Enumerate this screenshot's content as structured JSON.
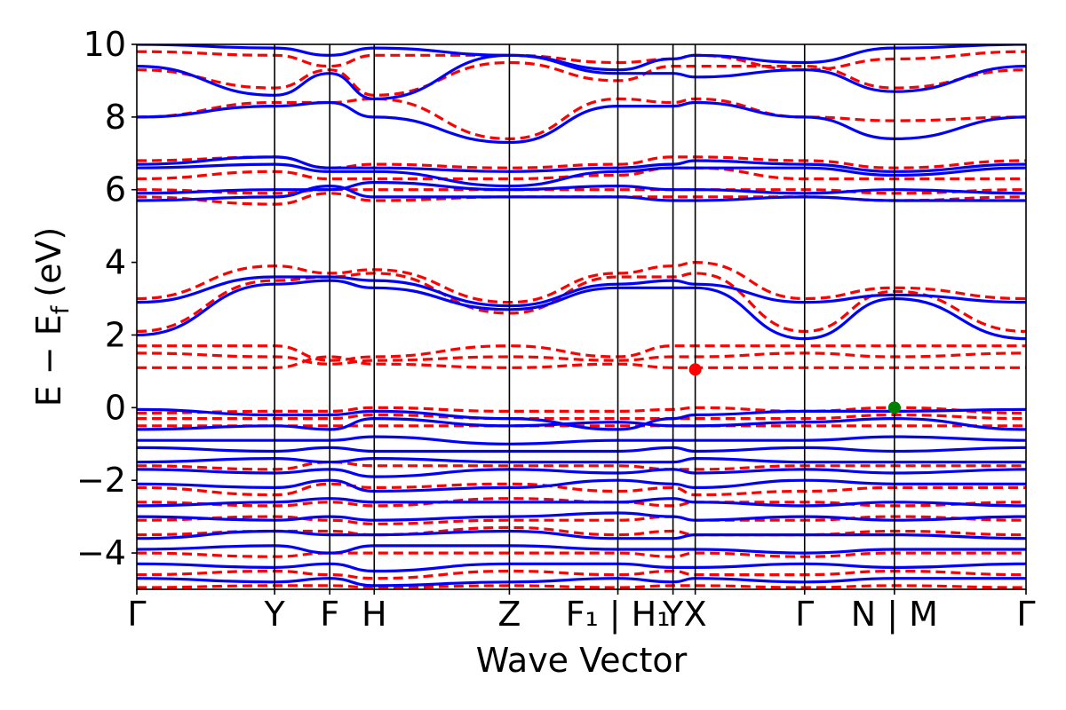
{
  "chart_data": {
    "type": "line",
    "xlabel": "Wave Vector",
    "ylabel_main": "E − E",
    "ylabel_sub": "f",
    "ylabel_unit": "(eV)",
    "ylim": [
      -5,
      10
    ],
    "yticks": [
      -4,
      -2,
      0,
      2,
      4,
      6,
      8,
      10
    ],
    "ytick_labels": [
      "−4",
      "−2",
      "0",
      "2",
      "4",
      "6",
      "8",
      "10"
    ],
    "xlim": [
      0,
      1
    ],
    "kpoints": [
      {
        "x": 0.0,
        "label": "Γ"
      },
      {
        "x": 0.155,
        "label": "Y"
      },
      {
        "x": 0.217,
        "label": "F"
      },
      {
        "x": 0.267,
        "label": "H"
      },
      {
        "x": 0.419,
        "label": "Z"
      },
      {
        "x": 0.541,
        "label": "F₁ | H₁"
      },
      {
        "x": 0.603,
        "label": "Y"
      },
      {
        "x": 0.628,
        "label": "X"
      },
      {
        "x": 0.751,
        "label": "Γ"
      },
      {
        "x": 0.852,
        "label": "N | M"
      },
      {
        "x": 1.0,
        "label": "Γ"
      }
    ],
    "series": [
      {
        "style": "solid",
        "color": "#0000ff"
      },
      {
        "style": "dashed",
        "color": "#ff0000"
      }
    ],
    "markers": [
      {
        "x": 0.628,
        "y": 1.05,
        "color": "#ff0000"
      },
      {
        "x": 0.852,
        "y": 0.0,
        "color": "#008000"
      }
    ],
    "bands_blue": [
      [
        10.0,
        9.9,
        9.7,
        9.9,
        9.7,
        9.3,
        9.6,
        9.7,
        9.5,
        9.9,
        10.0
      ],
      [
        9.4,
        8.6,
        9.2,
        8.5,
        9.7,
        9.2,
        9.2,
        9.1,
        9.3,
        8.7,
        9.4
      ],
      [
        8.0,
        8.3,
        8.4,
        8.0,
        7.3,
        8.3,
        8.3,
        8.4,
        8.0,
        7.4,
        8.0
      ],
      [
        6.7,
        6.9,
        6.6,
        6.6,
        6.5,
        6.6,
        6.7,
        6.8,
        6.7,
        6.5,
        6.7
      ],
      [
        6.6,
        6.7,
        6.5,
        6.5,
        6.1,
        6.5,
        6.6,
        6.6,
        6.6,
        6.4,
        6.6
      ],
      [
        5.9,
        6.0,
        6.0,
        6.2,
        6.0,
        6.1,
        6.0,
        6.0,
        5.9,
        6.0,
        5.9
      ],
      [
        5.7,
        5.8,
        6.1,
        5.8,
        5.8,
        5.8,
        5.7,
        5.7,
        5.8,
        5.7,
        5.7
      ],
      [
        2.9,
        3.6,
        3.6,
        3.5,
        2.8,
        3.4,
        3.5,
        3.4,
        2.9,
        3.1,
        2.9
      ],
      [
        2.0,
        3.4,
        3.5,
        3.3,
        2.7,
        3.3,
        3.3,
        3.3,
        1.9,
        3.0,
        1.9
      ],
      [
        -0.05,
        -0.2,
        -0.2,
        -0.1,
        -0.3,
        -0.6,
        -0.3,
        -0.2,
        -0.1,
        -0.1,
        -0.05
      ],
      [
        -0.6,
        -0.5,
        -0.6,
        -0.3,
        -0.5,
        -0.4,
        -0.5,
        -0.5,
        -0.4,
        -0.3,
        -0.6
      ],
      [
        -0.9,
        -0.9,
        -0.9,
        -0.8,
        -1.0,
        -0.9,
        -0.9,
        -0.9,
        -0.9,
        -0.8,
        -0.9
      ],
      [
        -1.1,
        -1.2,
        -1.1,
        -1.2,
        -1.2,
        -1.2,
        -1.1,
        -1.2,
        -1.1,
        -1.2,
        -1.1
      ],
      [
        -1.5,
        -1.4,
        -1.5,
        -1.4,
        -1.5,
        -1.5,
        -1.5,
        -1.4,
        -1.5,
        -1.5,
        -1.5
      ],
      [
        -1.7,
        -1.8,
        -1.7,
        -1.9,
        -1.7,
        -1.8,
        -1.7,
        -1.8,
        -1.7,
        -1.8,
        -1.7
      ],
      [
        -2.1,
        -2.2,
        -2.0,
        -2.3,
        -2.2,
        -2.0,
        -2.1,
        -2.2,
        -2.0,
        -2.1,
        -2.1
      ],
      [
        -2.7,
        -2.6,
        -2.5,
        -2.6,
        -2.6,
        -2.6,
        -2.5,
        -2.6,
        -2.7,
        -2.6,
        -2.7
      ],
      [
        -3.0,
        -3.1,
        -3.0,
        -3.1,
        -3.0,
        -2.9,
        -3.0,
        -3.1,
        -3.0,
        -3.1,
        -3.0
      ],
      [
        -3.6,
        -3.4,
        -3.5,
        -3.5,
        -3.4,
        -3.6,
        -3.6,
        -3.5,
        -3.5,
        -3.5,
        -3.6
      ],
      [
        -3.9,
        -3.8,
        -4.0,
        -3.8,
        -3.8,
        -3.9,
        -3.9,
        -3.9,
        -4.0,
        -3.9,
        -3.9
      ],
      [
        -4.3,
        -4.4,
        -4.3,
        -4.5,
        -4.3,
        -4.3,
        -4.4,
        -4.4,
        -4.3,
        -4.4,
        -4.3
      ],
      [
        -4.7,
        -4.8,
        -4.7,
        -4.9,
        -4.8,
        -4.7,
        -4.8,
        -4.7,
        -4.8,
        -4.7,
        -4.7
      ]
    ],
    "bands_red": [
      [
        9.8,
        9.7,
        9.4,
        9.7,
        9.7,
        9.5,
        9.6,
        9.7,
        9.3,
        9.6,
        9.8
      ],
      [
        9.3,
        8.8,
        9.3,
        8.6,
        9.5,
        9.0,
        9.4,
        9.4,
        9.4,
        8.8,
        9.3
      ],
      [
        8.0,
        8.4,
        8.4,
        8.5,
        7.4,
        8.5,
        8.4,
        8.5,
        8.0,
        7.9,
        8.0
      ],
      [
        6.8,
        6.9,
        6.6,
        6.7,
        6.6,
        6.7,
        6.9,
        6.9,
        6.8,
        6.6,
        6.8
      ],
      [
        6.3,
        6.5,
        6.3,
        6.3,
        6.3,
        6.4,
        6.6,
        6.6,
        6.3,
        6.3,
        6.3
      ],
      [
        6.0,
        5.9,
        6.0,
        6.0,
        6.0,
        6.0,
        6.0,
        6.0,
        6.0,
        5.9,
        6.0
      ],
      [
        5.8,
        5.6,
        5.9,
        5.7,
        5.8,
        5.8,
        5.8,
        5.8,
        5.8,
        5.7,
        5.8
      ],
      [
        3.0,
        3.9,
        3.7,
        3.8,
        2.9,
        3.7,
        3.9,
        4.0,
        3.0,
        3.3,
        3.0
      ],
      [
        2.1,
        3.5,
        3.6,
        3.7,
        2.6,
        3.6,
        3.6,
        3.7,
        2.1,
        3.2,
        2.1
      ],
      [
        1.7,
        1.7,
        1.3,
        1.4,
        1.7,
        1.4,
        1.7,
        1.7,
        1.7,
        1.7,
        1.7
      ],
      [
        1.5,
        1.4,
        1.2,
        1.3,
        1.4,
        1.3,
        1.4,
        1.4,
        1.5,
        1.4,
        1.5
      ],
      [
        1.1,
        1.1,
        1.4,
        1.2,
        1.1,
        1.2,
        1.1,
        1.1,
        1.1,
        1.1,
        1.1
      ],
      [
        -0.15,
        -0.1,
        -0.1,
        0.0,
        -0.1,
        -0.1,
        -0.05,
        0.0,
        -0.1,
        0.0,
        -0.15
      ],
      [
        -0.3,
        -0.3,
        -0.3,
        -0.2,
        -0.3,
        -0.3,
        -0.3,
        -0.3,
        -0.3,
        -0.2,
        -0.3
      ],
      [
        -0.5,
        -0.5,
        -0.5,
        -0.5,
        -0.5,
        -0.5,
        -0.5,
        -0.5,
        -0.5,
        -0.5,
        -0.5
      ],
      [
        -1.6,
        -1.7,
        -1.5,
        -1.6,
        -1.6,
        -1.6,
        -1.7,
        -1.7,
        -1.6,
        -1.6,
        -1.6
      ],
      [
        -2.2,
        -2.4,
        -2.1,
        -2.2,
        -2.1,
        -2.3,
        -2.2,
        -2.4,
        -2.3,
        -2.2,
        -2.2
      ],
      [
        -2.6,
        -2.7,
        -2.6,
        -2.7,
        -2.5,
        -2.6,
        -2.7,
        -2.6,
        -2.6,
        -2.7,
        -2.6
      ],
      [
        -3.1,
        -3.0,
        -3.1,
        -3.2,
        -3.1,
        -3.1,
        -3.0,
        -3.1,
        -3.1,
        -3.0,
        -3.1
      ],
      [
        -3.5,
        -3.4,
        -3.4,
        -3.5,
        -3.3,
        -3.5,
        -3.4,
        -3.5,
        -3.5,
        -3.4,
        -3.5
      ],
      [
        -4.0,
        -4.1,
        -4.0,
        -4.0,
        -4.0,
        -4.0,
        -4.1,
        -4.0,
        -4.1,
        -4.0,
        -4.0
      ],
      [
        -4.6,
        -4.5,
        -4.6,
        -4.7,
        -4.5,
        -4.6,
        -4.5,
        -4.6,
        -4.6,
        -4.5,
        -4.6
      ],
      [
        -4.95,
        -4.9,
        -4.9,
        -4.95,
        -4.9,
        -4.95,
        -4.9,
        -4.9,
        -4.95,
        -4.9,
        -4.95
      ]
    ]
  }
}
